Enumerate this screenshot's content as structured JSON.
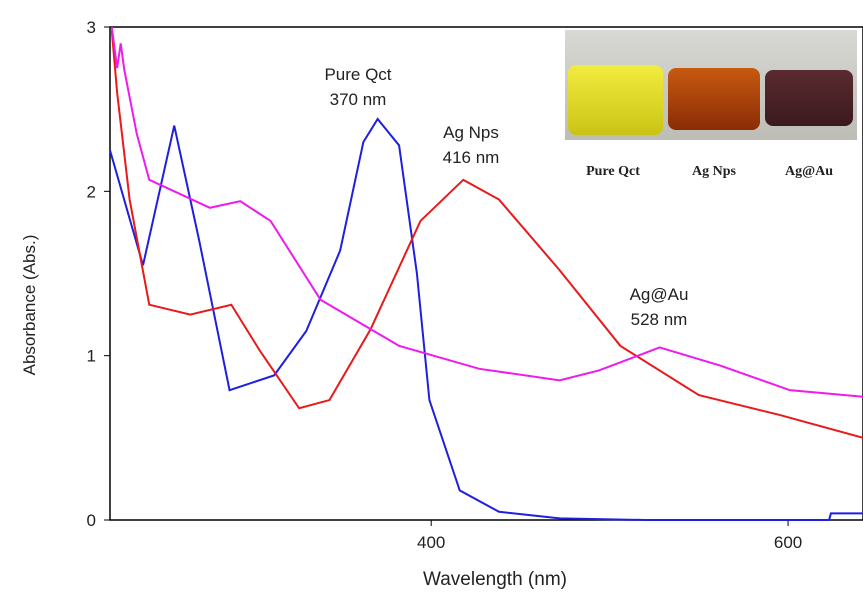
{
  "chart_data": {
    "type": "line",
    "xlabel": "Wavelength (nm)",
    "ylabel": "Absorbance (Abs.)",
    "xlim": [
      220,
      642
    ],
    "ylim": [
      0,
      3
    ],
    "xticks": [
      400,
      600
    ],
    "yticks": [
      0,
      1,
      2,
      3
    ],
    "series": [
      {
        "color": "#1f1fe0",
        "x": [
          220,
          238.5,
          256,
          270,
          287,
          312,
          330,
          349,
          362,
          370,
          382,
          392,
          399,
          416,
          438,
          472,
          520,
          580,
          623,
          624,
          642
        ],
        "values": [
          2.25,
          1.55,
          2.4,
          1.7,
          0.79,
          0.88,
          1.15,
          1.64,
          2.3,
          2.44,
          2.28,
          1.5,
          0.73,
          0.18,
          0.05,
          0.01,
          0.0,
          0.0,
          0.0,
          0.04,
          0.04
        ]
      },
      {
        "color": "#e81a1a",
        "x": [
          221,
          224,
          231,
          242,
          265,
          288,
          304,
          326,
          343,
          366,
          394,
          418,
          438,
          472,
          506,
          550,
          595,
          642
        ],
        "values": [
          2.98,
          2.6,
          1.95,
          1.31,
          1.25,
          1.31,
          1.03,
          0.68,
          0.73,
          1.16,
          1.82,
          2.07,
          1.95,
          1.52,
          1.06,
          0.76,
          0.64,
          0.5
        ]
      },
      {
        "color": "#ee1aee",
        "x": [
          221,
          224,
          226,
          228,
          235,
          242,
          256,
          276,
          293,
          310,
          338,
          382,
          427,
          472,
          494,
          528,
          562,
          601,
          642
        ],
        "values": [
          3.0,
          2.75,
          2.9,
          2.74,
          2.35,
          2.07,
          2.0,
          1.9,
          1.94,
          1.82,
          1.34,
          1.06,
          0.92,
          0.85,
          0.91,
          1.05,
          0.94,
          0.79,
          0.75
        ]
      }
    ],
    "annotations": [
      {
        "lines": [
          "Pure Qct",
          "370 nm"
        ]
      },
      {
        "lines": [
          "Ag Nps",
          "416 nm"
        ]
      },
      {
        "lines": [
          "Ag@Au",
          "528 nm"
        ]
      }
    ],
    "inset_labels": [
      "Pure Qct",
      "Ag Nps",
      "Ag@Au"
    ]
  }
}
